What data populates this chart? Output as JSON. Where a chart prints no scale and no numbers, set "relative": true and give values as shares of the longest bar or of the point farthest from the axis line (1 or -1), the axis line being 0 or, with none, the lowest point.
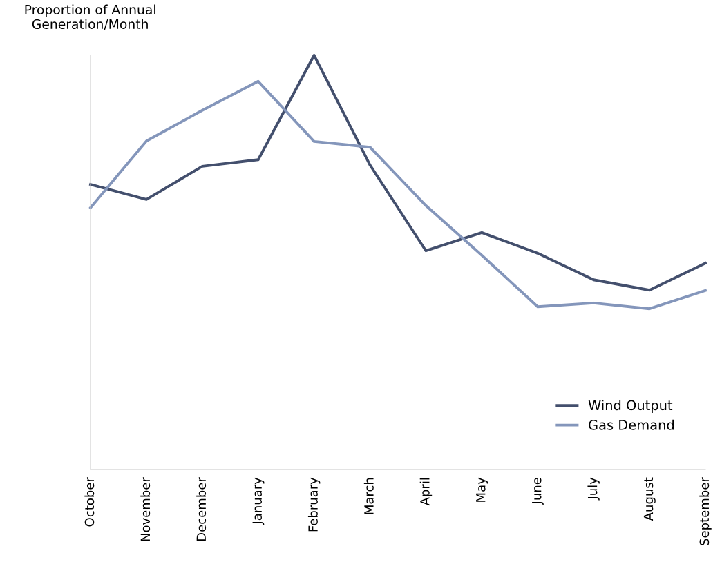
{
  "chart_data": {
    "type": "line",
    "ylabel": "Proportion of Annual\nGeneration/Month",
    "relative": true,
    "categories": [
      "October",
      "November",
      "December",
      "January",
      "February",
      "March",
      "April",
      "May",
      "June",
      "July",
      "August",
      "September"
    ],
    "series": [
      {
        "name": "Wind Output",
        "color": "#434f6d",
        "values": [
          0.688,
          0.652,
          0.732,
          0.748,
          1.0,
          0.735,
          0.528,
          0.572,
          0.522,
          0.458,
          0.433,
          0.498
        ]
      },
      {
        "name": "Gas Demand",
        "color": "#8496bb",
        "values": [
          0.632,
          0.793,
          0.867,
          0.937,
          0.792,
          0.778,
          0.637,
          0.517,
          0.393,
          0.402,
          0.388,
          0.432
        ]
      }
    ],
    "legend": "bottom right",
    "grid": false,
    "line_style": "solid",
    "marker": "none"
  }
}
